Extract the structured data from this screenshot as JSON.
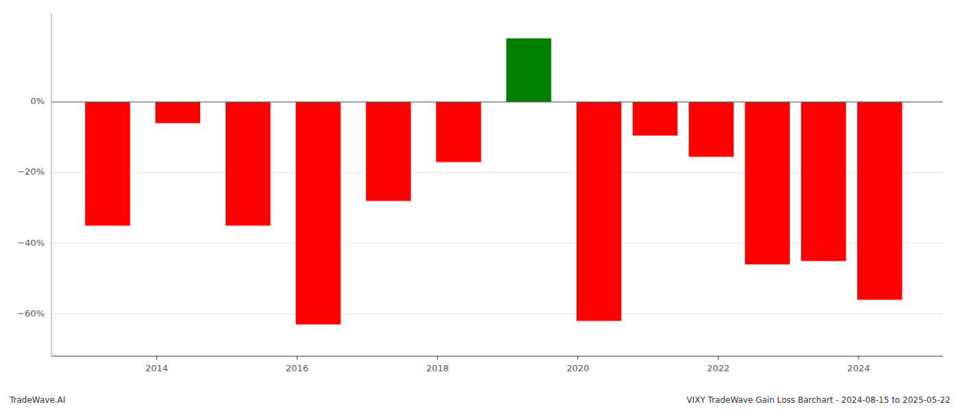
{
  "chart_data": {
    "type": "bar",
    "x": [
      2013.3,
      2014.3,
      2015.3,
      2016.3,
      2017.3,
      2018.3,
      2019.3,
      2020.3,
      2021.1,
      2021.9,
      2022.7,
      2023.5,
      2024.3
    ],
    "values": [
      -35.0,
      -6.0,
      -35.0,
      -63.0,
      -28.0,
      -17.0,
      18.0,
      -62.0,
      -9.5,
      -15.5,
      -46.0,
      -45.0,
      -56.0
    ],
    "colors": [
      "#ff0000",
      "#ff0000",
      "#ff0000",
      "#ff0000",
      "#ff0000",
      "#ff0000",
      "#008000",
      "#ff0000",
      "#ff0000",
      "#ff0000",
      "#ff0000",
      "#ff0000",
      "#ff0000"
    ],
    "ylim": [
      -72,
      25
    ],
    "yticks": [
      {
        "value": 0,
        "label": "0%"
      },
      {
        "value": -20,
        "label": "−20%"
      },
      {
        "value": -40,
        "label": "−40%"
      },
      {
        "value": -60,
        "label": "−60%"
      }
    ],
    "xlim": [
      2012.5,
      2025.2
    ],
    "xticks": [
      2014,
      2016,
      2018,
      2020,
      2022,
      2024
    ],
    "grid": true,
    "annotations": [
      "TradeWave.AI",
      "VIXY TradeWave Gain Loss Barchart - 2024-08-15 to 2025-05-22"
    ]
  }
}
